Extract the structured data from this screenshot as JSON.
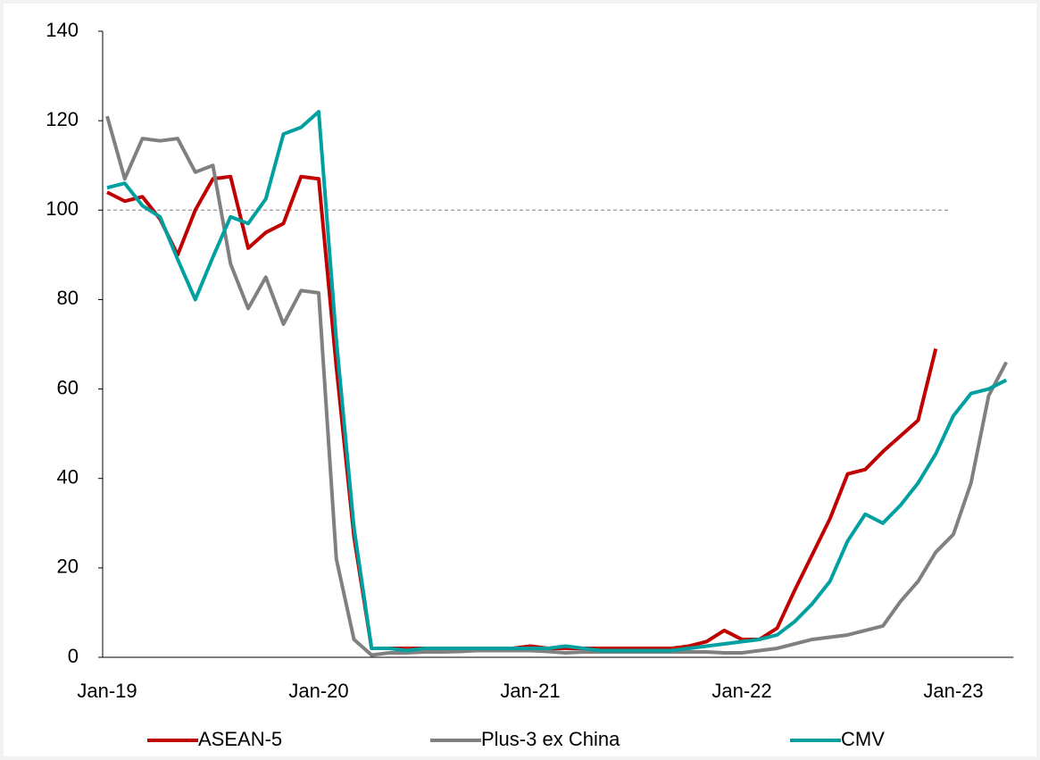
{
  "chart_data": {
    "type": "line",
    "categories": [
      "Jan-19",
      null,
      null,
      null,
      null,
      null,
      null,
      null,
      null,
      null,
      null,
      null,
      "Jan-20",
      null,
      null,
      null,
      null,
      null,
      null,
      null,
      null,
      null,
      null,
      null,
      "Jan-21",
      null,
      null,
      null,
      null,
      null,
      null,
      null,
      null,
      null,
      null,
      null,
      "Jan-22",
      null,
      null,
      null,
      null,
      null,
      null,
      null,
      null,
      null,
      null,
      null,
      "Jan-23",
      null,
      null,
      null
    ],
    "series": [
      {
        "name": "ASEAN-5",
        "color": "#c00000",
        "values": [
          104,
          102,
          103,
          98,
          90,
          100,
          107,
          107.5,
          91.5,
          95,
          97,
          107.5,
          107,
          65,
          27,
          2,
          2,
          2,
          2,
          2,
          2,
          2,
          2,
          2,
          2.5,
          2,
          2,
          2,
          2,
          2,
          2,
          2,
          2,
          2.5,
          3.5,
          6,
          4,
          4,
          6.5,
          15,
          23,
          31,
          41,
          42,
          46,
          49.5,
          53,
          69,
          null,
          null,
          null,
          null
        ]
      },
      {
        "name": "Plus-3 ex China",
        "color": "#808080",
        "values": [
          121,
          107,
          116,
          115.5,
          116,
          108.5,
          110,
          88,
          78,
          85,
          74.5,
          82,
          81.5,
          22,
          4,
          0.5,
          1,
          1,
          1.2,
          1.2,
          1.3,
          1.5,
          1.5,
          1.5,
          1.5,
          1.3,
          1,
          1.2,
          1.2,
          1.2,
          1.2,
          1.2,
          1.2,
          1.2,
          1.2,
          1,
          1,
          1.5,
          2,
          3,
          4,
          4.5,
          5,
          6,
          7,
          12.5,
          17,
          23.5,
          27.5,
          39,
          58.5,
          66
        ]
      },
      {
        "name": "CMV",
        "color": "#00a0a0",
        "values": [
          105,
          106,
          101,
          98.5,
          89,
          80,
          89.5,
          98.5,
          97,
          102.5,
          117,
          118.5,
          122,
          71,
          29,
          2,
          2,
          1.5,
          2,
          2,
          2,
          2,
          2,
          2,
          2,
          2,
          2.5,
          2,
          1.5,
          1.5,
          1.5,
          1.5,
          1.5,
          2,
          2.5,
          3,
          3.5,
          4,
          5,
          8,
          12,
          17,
          26,
          32,
          30,
          34,
          39,
          45.5,
          54,
          59,
          60,
          62
        ]
      }
    ],
    "reference_line": 100,
    "ylim": [
      0,
      140
    ],
    "yticks": [
      0,
      20,
      40,
      60,
      80,
      100,
      120,
      140
    ],
    "legend": "bottom"
  }
}
